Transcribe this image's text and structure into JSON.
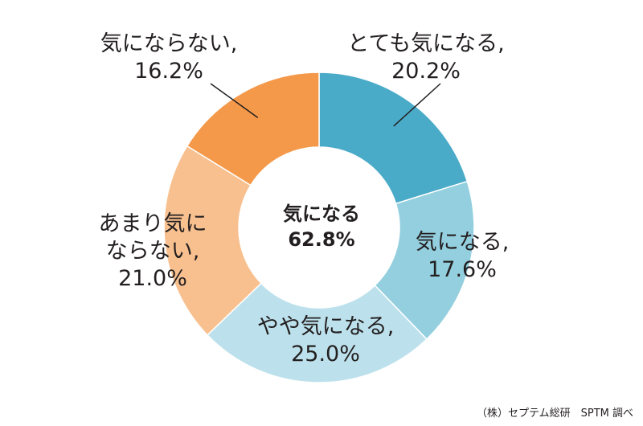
{
  "chart_data": {
    "type": "pie",
    "variant": "donut",
    "categories": [
      "とても気になる",
      "気になる",
      "やや気になる",
      "あまり気にならない",
      "気にならない"
    ],
    "values": [
      20.2,
      17.6,
      25.0,
      21.0,
      16.2
    ],
    "unit": "%",
    "colors": [
      "#4aabc8",
      "#94cfdf",
      "#bde1ec",
      "#f8c08f",
      "#f4994a"
    ],
    "slice_labels": [
      {
        "lines": [
          "とても気になる,",
          "20.2%"
        ]
      },
      {
        "lines": [
          "気になる,",
          "17.6%"
        ]
      },
      {
        "lines": [
          "やや気になる,",
          "25.0%"
        ]
      },
      {
        "lines": [
          "あまり気に",
          "ならない,",
          "21.0%"
        ]
      },
      {
        "lines": [
          "気にならない,",
          "16.2%"
        ]
      }
    ],
    "center_label": {
      "line1": "気になる",
      "line2": "62.8%"
    }
  },
  "source_note": "（株）セプテム総研　SPTM 調べ"
}
